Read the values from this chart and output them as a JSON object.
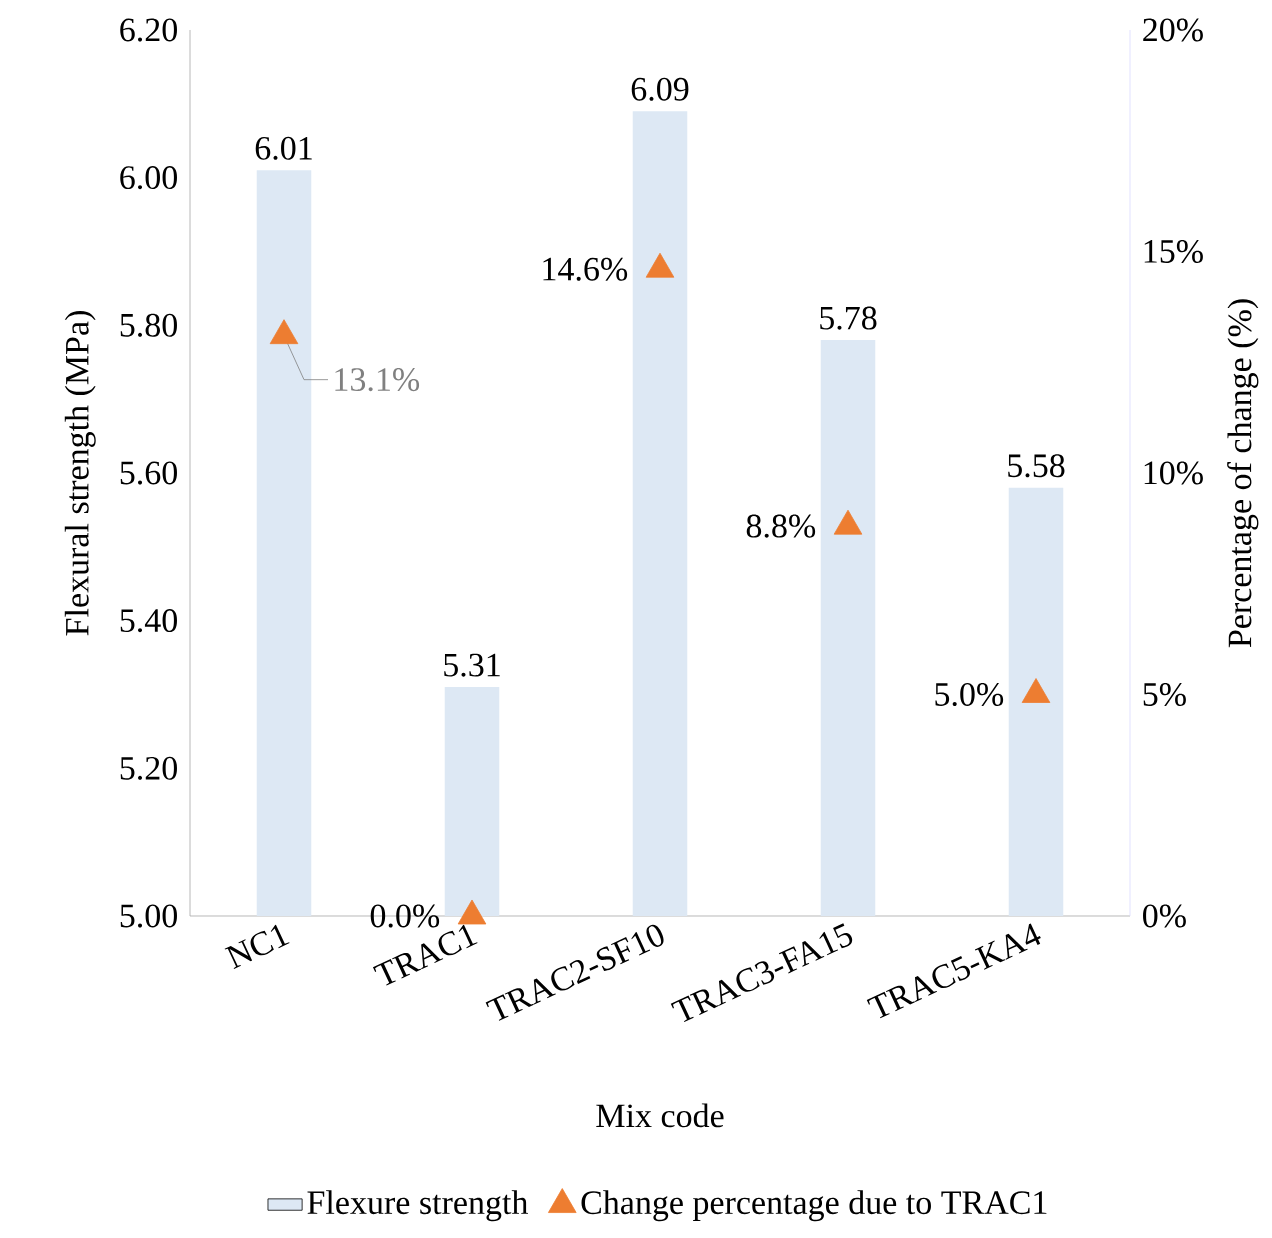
{
  "chart_data": {
    "type": "bar",
    "xlabel": "Mix code",
    "ylabel": "Flexural strength (MPa)",
    "y2label": "Percentage of change (%)",
    "categories": [
      "NC1",
      "TRAC1",
      "TRAC2-SF10",
      "TRAC3-FA15",
      "TRAC5-KA4"
    ],
    "series": [
      {
        "name": "Flexure strength",
        "color": "#dde8f4",
        "values": [
          6.01,
          5.31,
          6.09,
          5.78,
          5.58
        ],
        "value_labels": [
          "6.01",
          "5.31",
          "6.09",
          "5.78",
          "5.58"
        ]
      },
      {
        "name": "Change percentage due to TRAC1",
        "type": "scatter",
        "axis": "y2",
        "marker": "triangle",
        "color": "#ed7d31",
        "values": [
          13.1,
          0.0,
          14.6,
          8.8,
          5.0
        ],
        "value_labels": [
          "13.1%",
          "0.0%",
          "14.6%",
          "8.8%",
          "5.0%"
        ]
      }
    ],
    "ylim": [
      5.0,
      6.2
    ],
    "yticks": [
      {
        "value": 5.0,
        "label": "5.00"
      },
      {
        "value": 5.2,
        "label": "5.20"
      },
      {
        "value": 5.4,
        "label": "5.40"
      },
      {
        "value": 5.6,
        "label": "5.60"
      },
      {
        "value": 5.8,
        "label": "5.80"
      },
      {
        "value": 6.0,
        "label": "6.00"
      },
      {
        "value": 6.2,
        "label": "6.20"
      }
    ],
    "y2lim": [
      0,
      20
    ],
    "y2ticks": [
      {
        "value": 0,
        "label": "0%"
      },
      {
        "value": 5,
        "label": "5%"
      },
      {
        "value": 10,
        "label": "10%"
      },
      {
        "value": 15,
        "label": "15%"
      },
      {
        "value": 20,
        "label": "20%"
      }
    ],
    "legend": "bottom"
  }
}
